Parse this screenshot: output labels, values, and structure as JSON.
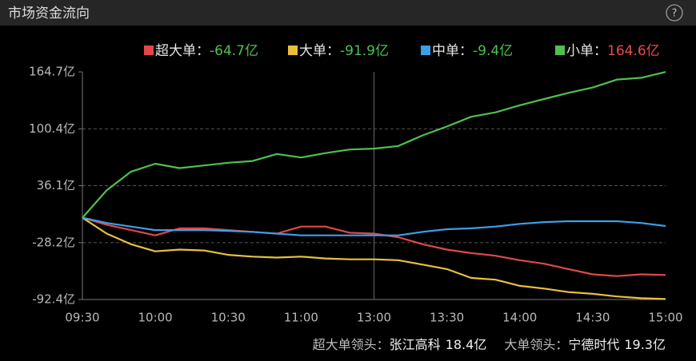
{
  "header": {
    "title": "市场资金流向",
    "help_icon": "?"
  },
  "chart_data": {
    "type": "line",
    "categories": [
      "09:30",
      null,
      null,
      "10:00",
      null,
      null,
      "10:30",
      null,
      null,
      "11:00",
      null,
      null,
      "13:00",
      null,
      null,
      "13:30",
      null,
      null,
      "14:00",
      null,
      null,
      "14:30",
      null,
      null,
      "15:00"
    ],
    "series": [
      {
        "name": "超大单",
        "color": "#e04848",
        "total": -64.7,
        "total_label": "-64.7亿",
        "values": [
          0,
          -8,
          -14,
          -20,
          -12,
          -12,
          -14,
          -16,
          -18,
          -10,
          -10,
          -17,
          -18,
          -22,
          -30,
          -36,
          -40,
          -43,
          -48,
          -52,
          -58,
          -64,
          -66,
          -64,
          -64.7
        ]
      },
      {
        "name": "大单",
        "color": "#e8c040",
        "total": -91.9,
        "total_label": "-91.9亿",
        "values": [
          0,
          -18,
          -30,
          -38,
          -36,
          -37,
          -42,
          -44,
          -45,
          -44,
          -46,
          -47,
          -47,
          -48,
          -53,
          -58,
          -68,
          -70,
          -77,
          -80,
          -84,
          -86,
          -89,
          -91,
          -91.9
        ]
      },
      {
        "name": "中单",
        "color": "#3d9ee8",
        "total": -9.4,
        "total_label": "-9.4亿",
        "values": [
          0,
          -6,
          -10,
          -14,
          -14,
          -14,
          -15,
          -16,
          -18,
          -20,
          -20,
          -20,
          -20,
          -20,
          -16,
          -13,
          -12,
          -10,
          -7,
          -5,
          -4,
          -4,
          -4,
          -6,
          -9.4
        ]
      },
      {
        "name": "小单",
        "color": "#4fc04f",
        "total": 164.6,
        "total_label": "164.6亿",
        "values": [
          0,
          31,
          52,
          61,
          56,
          59,
          62,
          64,
          72,
          68,
          73,
          77,
          78,
          81,
          93,
          103,
          114,
          119,
          127,
          134,
          141,
          147,
          156,
          158,
          164.6
        ]
      }
    ],
    "legend_separator": "：",
    "up_color": "#e84c4c",
    "down_color": "#4fc04f",
    "ylim": [
      -92.4,
      164.7
    ],
    "yticks": [
      {
        "value": -92.4,
        "label": "-92.4亿"
      },
      {
        "value": -28.2,
        "label": "-28.2亿"
      },
      {
        "value": 36.1,
        "label": "36.1亿"
      },
      {
        "value": 100.4,
        "label": "100.4亿"
      },
      {
        "value": 164.7,
        "label": "164.7亿"
      }
    ],
    "grid": true
  },
  "footer": [
    {
      "label": "超大单领头：",
      "stock": "张江高科",
      "amount": "18.4亿"
    },
    {
      "label": "大单领头：",
      "stock": "宁德时代",
      "amount": "19.3亿"
    }
  ]
}
